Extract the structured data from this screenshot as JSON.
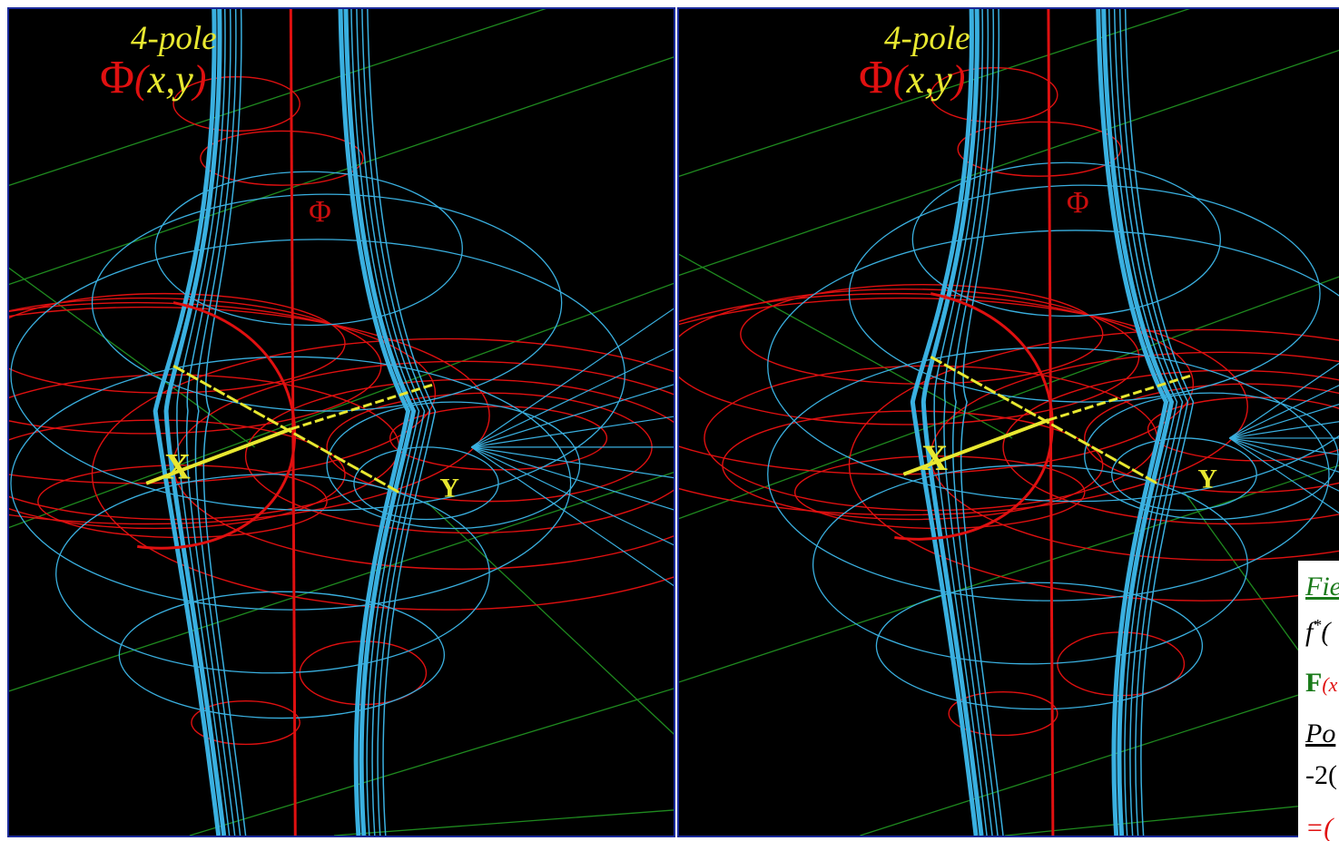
{
  "panels": [
    {
      "name": "left",
      "pole_label": "4-pole",
      "phi_symbol": "Φ",
      "phi_args": "x,y",
      "x_axis": "X",
      "y_axis": "Y",
      "phi_axis": "Φ"
    },
    {
      "name": "right",
      "pole_label": "4-pole",
      "phi_symbol": "Φ",
      "phi_args": "x,y",
      "x_axis": "X",
      "y_axis": "Y",
      "phi_axis": "Φ"
    }
  ],
  "caption": {
    "line1": "Fie",
    "line2_sym": "f",
    "line2_sup": "*",
    "line2_rest": "(",
    "line3_sym": "F",
    "line3_rest": "(x",
    "line4": "Po",
    "line5": "-2(",
    "line6": "=("
  },
  "colors": {
    "background": "#000000",
    "frame": "#1a2a9a",
    "potential": "#e01010",
    "field": "#3ab0e0",
    "axes": "#e8e830",
    "grid": "#1f8a1f",
    "caption_green": "#1a7a1a"
  }
}
